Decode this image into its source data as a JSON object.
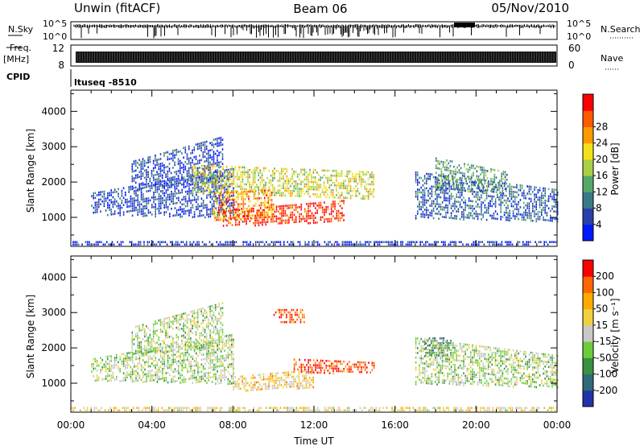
{
  "header": {
    "station": "Unwin (fitACF)",
    "beam": "Beam 06",
    "date": "05/Nov/2010"
  },
  "status_panels": {
    "nsky_label": "N.Sky",
    "nsky_ticks": [
      "10^5",
      "10^0"
    ],
    "nsearch_label": "N.Search",
    "nsearch_ticks": [
      "10^5",
      "10^0"
    ],
    "freq_label_1": "Freq.",
    "freq_label_2": "[MHz]",
    "freq_ticks": [
      "12",
      "8"
    ],
    "nave_label": "Nave",
    "nave_ticks": [
      "60",
      "0"
    ],
    "cpid_label": "CPID",
    "cpid_value": "ltuseq -8510"
  },
  "chart_data": [
    {
      "type": "heatmap",
      "quantity": "Power",
      "ylabel": "Slant Range [km]",
      "ylim": [
        180,
        4600
      ],
      "yticks": [
        1000,
        2000,
        3000,
        4000
      ],
      "xlim_hours": [
        0,
        24
      ],
      "colorbar": {
        "label": "Power [dB]",
        "ticks": [
          "4",
          "8",
          "12",
          "16",
          "20",
          "24",
          "28"
        ],
        "colors": [
          "#0018ff",
          "#2a3fa8",
          "#3a7a86",
          "#55a86a",
          "#a9cf45",
          "#f3e01a",
          "#ff9900",
          "#ff5a00",
          "#ff0000"
        ]
      },
      "echo_regions": [
        {
          "t": [
            1.0,
            8.0
          ],
          "r_low": [
            1100,
            1000
          ],
          "r_high": [
            1700,
            2400
          ],
          "level": 0.15
        },
        {
          "t": [
            3.0,
            7.5
          ],
          "r_low": [
            1800,
            2000
          ],
          "r_high": [
            2600,
            3300
          ],
          "level": 0.15
        },
        {
          "t": [
            6.0,
            15.0
          ],
          "r_low": [
            1700,
            1500
          ],
          "r_high": [
            2500,
            2300
          ],
          "level": 0.55
        },
        {
          "t": [
            7.5,
            13.5
          ],
          "r_low": [
            750,
            900
          ],
          "r_high": [
            1200,
            1500
          ],
          "level": 0.93
        },
        {
          "t": [
            7.0,
            10.0
          ],
          "r_low": [
            900,
            1000
          ],
          "r_high": [
            1700,
            1800
          ],
          "level": 0.75
        },
        {
          "t": [
            17.0,
            24.0
          ],
          "r_low": [
            1000,
            900
          ],
          "r_high": [
            2300,
            1800
          ],
          "level": 0.22
        },
        {
          "t": [
            18.0,
            21.5
          ],
          "r_low": [
            1800,
            1700
          ],
          "r_high": [
            2700,
            2300
          ],
          "level": 0.35
        },
        {
          "t": [
            0.0,
            24.0
          ],
          "r_low": [
            200,
            200
          ],
          "r_high": [
            330,
            330
          ],
          "level": 0.1
        }
      ]
    },
    {
      "type": "heatmap",
      "quantity": "Velocity",
      "ylabel": "Slant Range [km]",
      "ylim": [
        180,
        4600
      ],
      "yticks": [
        1000,
        2000,
        3000,
        4000
      ],
      "xlim_hours": [
        0,
        24
      ],
      "xticks": [
        "00:00",
        "04:00",
        "08:00",
        "12:00",
        "16:00",
        "20:00",
        "00:00"
      ],
      "xlabel": "Time UT",
      "colorbar": {
        "label": "Velocity [m s⁻¹]",
        "ticks": [
          "200",
          "100",
          "50",
          "15",
          "-15",
          "-50",
          "-100",
          "-200"
        ],
        "colors": [
          "#2233aa",
          "#2f6b78",
          "#3a9140",
          "#6ccc3a",
          "#c8c8c8",
          "#f0d040",
          "#ffaa00",
          "#ff6600",
          "#ff0000"
        ]
      },
      "echo_regions": [
        {
          "t": [
            1.0,
            8.0
          ],
          "r_low": [
            1100,
            1000
          ],
          "r_high": [
            1700,
            2400
          ],
          "level": 0.45
        },
        {
          "t": [
            3.0,
            7.5
          ],
          "r_low": [
            1800,
            2000
          ],
          "r_high": [
            2600,
            3300
          ],
          "level": 0.45
        },
        {
          "t": [
            11.0,
            15.0
          ],
          "r_low": [
            1300,
            1300
          ],
          "r_high": [
            1700,
            1600
          ],
          "level": 0.92
        },
        {
          "t": [
            8.0,
            12.0
          ],
          "r_low": [
            800,
            900
          ],
          "r_high": [
            1200,
            1400
          ],
          "level": 0.62
        },
        {
          "t": [
            10.0,
            11.5
          ],
          "r_low": [
            2700,
            2700
          ],
          "r_high": [
            3100,
            3100
          ],
          "level": 0.9
        },
        {
          "t": [
            17.5,
            18.8
          ],
          "r_low": [
            1800,
            1800
          ],
          "r_high": [
            2300,
            2300
          ],
          "level": 0.22
        },
        {
          "t": [
            17.0,
            24.0
          ],
          "r_low": [
            1000,
            900
          ],
          "r_high": [
            2300,
            1800
          ],
          "level": 0.45
        },
        {
          "t": [
            0.0,
            24.0
          ],
          "r_low": [
            200,
            200
          ],
          "r_high": [
            330,
            330
          ],
          "level": 0.6
        }
      ]
    }
  ]
}
